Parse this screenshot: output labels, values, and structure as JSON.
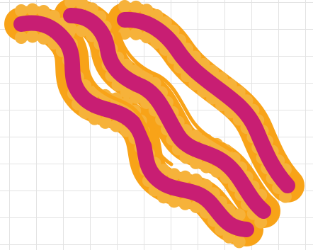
{
  "colors": {
    "background": "#ffffff",
    "grid_line": "#e3e3e3",
    "outline": "#f8a318",
    "fill": "#c81e73"
  },
  "artwork": {
    "subject_icon": "bacon-strips-icon",
    "strip_count": 3
  }
}
